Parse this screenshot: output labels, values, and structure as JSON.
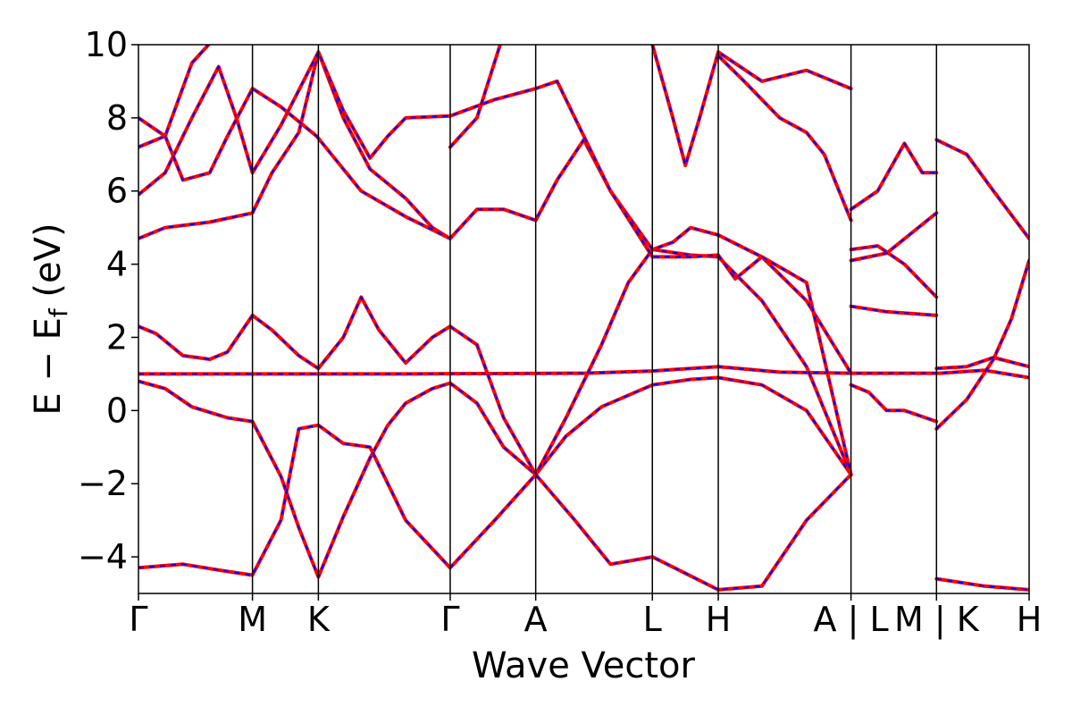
{
  "chart_data": {
    "type": "line",
    "xlabel": "Wave Vector",
    "ylabel": {
      "main": "E − E",
      "subscript": "f",
      "unit": " (eV)"
    },
    "ylim": [
      -5,
      10
    ],
    "yticks": [
      -4,
      -2,
      0,
      2,
      4,
      6,
      8,
      10
    ],
    "ytick_labels": [
      "−4",
      "−2",
      "0",
      "2",
      "4",
      "6",
      "8",
      "10"
    ],
    "xlim": [
      0,
      1
    ],
    "kpoint_positions": [
      0,
      0.128,
      0.202,
      0.35,
      0.446,
      0.577,
      0.651,
      0.8,
      0.896,
      1
    ],
    "xtick_labels": [
      "Γ",
      "M",
      "K",
      "Γ",
      "A",
      "L",
      "H",
      "A | L",
      "M | K",
      "H"
    ],
    "grid": false,
    "colors": {
      "band_solid": "#ff0000",
      "band_dashed": "#0000ff",
      "kpath_lines": "#000000"
    },
    "series": [
      {
        "values": [
          [
            0,
            1.0
          ],
          [
            0.1,
            1.0
          ],
          [
            0.2,
            1.0
          ],
          [
            0.3,
            1.0
          ],
          [
            0.4,
            1.01
          ],
          [
            0.5,
            1.02
          ],
          [
            0.577,
            1.08
          ],
          [
            0.651,
            1.2
          ],
          [
            0.72,
            1.05
          ],
          [
            0.8,
            1.02
          ],
          [
            0.85,
            1.02
          ],
          [
            0.9,
            1.02
          ],
          [
            0.95,
            1.1
          ],
          [
            1,
            0.9
          ]
        ]
      },
      {
        "values": [
          [
            0,
            0.8
          ],
          [
            0.03,
            0.6
          ],
          [
            0.06,
            0.1
          ],
          [
            0.1,
            -0.2
          ],
          [
            0.128,
            -0.3
          ],
          [
            0.16,
            -1.8
          ],
          [
            0.18,
            -3.2
          ],
          [
            0.202,
            -4.55
          ],
          [
            0.23,
            -2.9
          ],
          [
            0.26,
            -1.3
          ],
          [
            0.28,
            -0.4
          ],
          [
            0.3,
            0.2
          ],
          [
            0.33,
            0.6
          ],
          [
            0.35,
            0.75
          ],
          [
            0.38,
            0.2
          ],
          [
            0.41,
            -1.0
          ],
          [
            0.446,
            -1.75
          ],
          [
            0.48,
            -0.7
          ],
          [
            0.52,
            0.1
          ],
          [
            0.577,
            0.7
          ],
          [
            0.62,
            0.85
          ],
          [
            0.651,
            0.9
          ],
          [
            0.7,
            0.7
          ],
          [
            0.75,
            0
          ],
          [
            0.8,
            -1.75
          ]
        ]
      },
      {
        "values": [
          [
            0,
            2.3
          ],
          [
            0.02,
            2.1
          ],
          [
            0.05,
            1.5
          ],
          [
            0.08,
            1.4
          ],
          [
            0.1,
            1.6
          ],
          [
            0.128,
            2.6
          ],
          [
            0.15,
            2.2
          ],
          [
            0.18,
            1.5
          ],
          [
            0.202,
            1.15
          ],
          [
            0.23,
            2.0
          ],
          [
            0.25,
            3.1
          ],
          [
            0.27,
            2.2
          ],
          [
            0.3,
            1.3
          ],
          [
            0.33,
            2.0
          ],
          [
            0.35,
            2.3
          ],
          [
            0.38,
            1.8
          ],
          [
            0.41,
            -0.2
          ],
          [
            0.446,
            -1.75
          ],
          [
            0.48,
            -0.2
          ],
          [
            0.52,
            1.8
          ],
          [
            0.55,
            3.5
          ],
          [
            0.577,
            4.4
          ],
          [
            0.62,
            4.25
          ],
          [
            0.651,
            4.2
          ],
          [
            0.7,
            3.0
          ],
          [
            0.75,
            1.2
          ],
          [
            0.8,
            -1.75
          ]
        ]
      },
      {
        "values": [
          [
            0,
            4.7
          ],
          [
            0.03,
            5.0
          ],
          [
            0.08,
            5.15
          ],
          [
            0.128,
            5.4
          ],
          [
            0.15,
            6.5
          ],
          [
            0.18,
            7.6
          ],
          [
            0.202,
            9.8
          ],
          [
            0.23,
            8.0
          ],
          [
            0.26,
            6.6
          ],
          [
            0.28,
            6.2
          ],
          [
            0.3,
            5.8
          ],
          [
            0.33,
            5.0
          ],
          [
            0.35,
            4.7
          ],
          [
            0.38,
            5.5
          ],
          [
            0.41,
            5.5
          ],
          [
            0.446,
            5.2
          ],
          [
            0.47,
            6.3
          ],
          [
            0.5,
            7.4
          ],
          [
            0.53,
            6.0
          ],
          [
            0.577,
            4.4
          ],
          [
            0.6,
            4.6
          ],
          [
            0.62,
            5.0
          ],
          [
            0.651,
            4.8
          ],
          [
            0.7,
            4.2
          ],
          [
            0.75,
            3.0
          ],
          [
            0.8,
            1.02
          ]
        ]
      },
      {
        "values": [
          [
            0,
            5.9
          ],
          [
            0.03,
            6.5
          ],
          [
            0.06,
            8.0
          ],
          [
            0.09,
            9.4
          ],
          [
            0.11,
            8.0
          ],
          [
            0.128,
            6.5
          ],
          [
            0.16,
            7.8
          ],
          [
            0.202,
            9.8
          ],
          [
            0.23,
            8.2
          ],
          [
            0.26,
            6.9
          ],
          [
            0.28,
            7.5
          ],
          [
            0.3,
            8.0
          ],
          [
            0.35,
            8.05
          ],
          [
            0.4,
            8.5
          ],
          [
            0.446,
            8.8
          ],
          [
            0.47,
            9.0
          ],
          [
            0.5,
            7.5
          ],
          [
            0.53,
            6.0
          ],
          [
            0.577,
            4.2
          ],
          [
            0.62,
            4.2
          ],
          [
            0.651,
            4.25
          ],
          [
            0.67,
            3.6
          ],
          [
            0.7,
            4.2
          ],
          [
            0.75,
            3.5
          ],
          [
            0.8,
            -1.75
          ]
        ]
      },
      {
        "values": [
          [
            0,
            7.2
          ],
          [
            0.03,
            7.5
          ],
          [
            0.06,
            9.5
          ],
          [
            0.09,
            10.3
          ]
        ]
      },
      {
        "values": [
          [
            0,
            8.0
          ],
          [
            0.03,
            7.5
          ],
          [
            0.05,
            6.3
          ],
          [
            0.08,
            6.5
          ],
          [
            0.1,
            7.5
          ],
          [
            0.128,
            8.8
          ],
          [
            0.16,
            8.3
          ],
          [
            0.2,
            7.5
          ],
          [
            0.25,
            6.0
          ],
          [
            0.3,
            5.3
          ],
          [
            0.35,
            4.7
          ]
        ]
      },
      {
        "values": [
          [
            0.35,
            7.2
          ],
          [
            0.38,
            8.0
          ],
          [
            0.41,
            10.3
          ]
        ]
      },
      {
        "values": [
          [
            0.577,
            10.0
          ],
          [
            0.6,
            8.0
          ],
          [
            0.614,
            6.7
          ],
          [
            0.63,
            8.0
          ],
          [
            0.651,
            9.8
          ],
          [
            0.7,
            9.0
          ],
          [
            0.75,
            9.3
          ],
          [
            0.8,
            8.8
          ]
        ]
      },
      {
        "values": [
          [
            0.651,
            9.7
          ],
          [
            0.68,
            9.0
          ],
          [
            0.72,
            8.0
          ],
          [
            0.75,
            7.6
          ],
          [
            0.77,
            7.0
          ],
          [
            0.8,
            5.2
          ]
        ]
      },
      {
        "values": [
          [
            0,
            -4.3
          ],
          [
            0.05,
            -4.2
          ],
          [
            0.1,
            -4.4
          ],
          [
            0.128,
            -4.5
          ],
          [
            0.16,
            -3.0
          ],
          [
            0.18,
            -0.5
          ],
          [
            0.202,
            -0.4
          ],
          [
            0.23,
            -0.9
          ],
          [
            0.26,
            -1.0
          ],
          [
            0.3,
            -3.0
          ],
          [
            0.35,
            -4.3
          ],
          [
            0.4,
            -3.0
          ],
          [
            0.446,
            -1.75
          ],
          [
            0.49,
            -3.0
          ],
          [
            0.53,
            -4.2
          ],
          [
            0.577,
            -4.0
          ],
          [
            0.61,
            -4.4
          ],
          [
            0.651,
            -4.9
          ],
          [
            0.7,
            -4.8
          ],
          [
            0.75,
            -3.0
          ],
          [
            0.8,
            -1.75
          ]
        ]
      },
      {
        "values": [
          [
            0.8,
            5.5
          ],
          [
            0.83,
            6.0
          ],
          [
            0.86,
            7.3
          ],
          [
            0.88,
            6.5
          ],
          [
            0.896,
            6.5
          ]
        ]
      },
      {
        "values": [
          [
            0.8,
            4.4
          ],
          [
            0.83,
            4.5
          ],
          [
            0.86,
            4.0
          ],
          [
            0.88,
            3.5
          ],
          [
            0.896,
            3.1
          ]
        ]
      },
      {
        "values": [
          [
            0.8,
            2.85
          ],
          [
            0.84,
            2.7
          ],
          [
            0.896,
            2.6
          ]
        ]
      },
      {
        "values": [
          [
            0.8,
            0.7
          ],
          [
            0.82,
            0.5
          ],
          [
            0.84,
            0.0
          ],
          [
            0.86,
            0.0
          ],
          [
            0.896,
            -0.3
          ]
        ]
      },
      {
        "values": [
          [
            0.8,
            4.1
          ],
          [
            0.84,
            4.3
          ],
          [
            0.896,
            5.4
          ]
        ]
      },
      {
        "values": [
          [
            0.896,
            7.4
          ],
          [
            0.93,
            7.0
          ],
          [
            0.96,
            6.0
          ],
          [
            1,
            4.7
          ]
        ]
      },
      {
        "values": [
          [
            0.896,
            -0.5
          ],
          [
            0.93,
            0.3
          ],
          [
            0.96,
            1.4
          ],
          [
            0.98,
            2.5
          ],
          [
            1,
            4.1
          ]
        ]
      },
      {
        "values": [
          [
            0.896,
            -4.6
          ],
          [
            0.95,
            -4.8
          ],
          [
            1,
            -4.9
          ]
        ]
      },
      {
        "values": [
          [
            0.896,
            1.15
          ],
          [
            0.93,
            1.2
          ],
          [
            0.96,
            1.45
          ],
          [
            1,
            1.2
          ]
        ]
      }
    ]
  }
}
